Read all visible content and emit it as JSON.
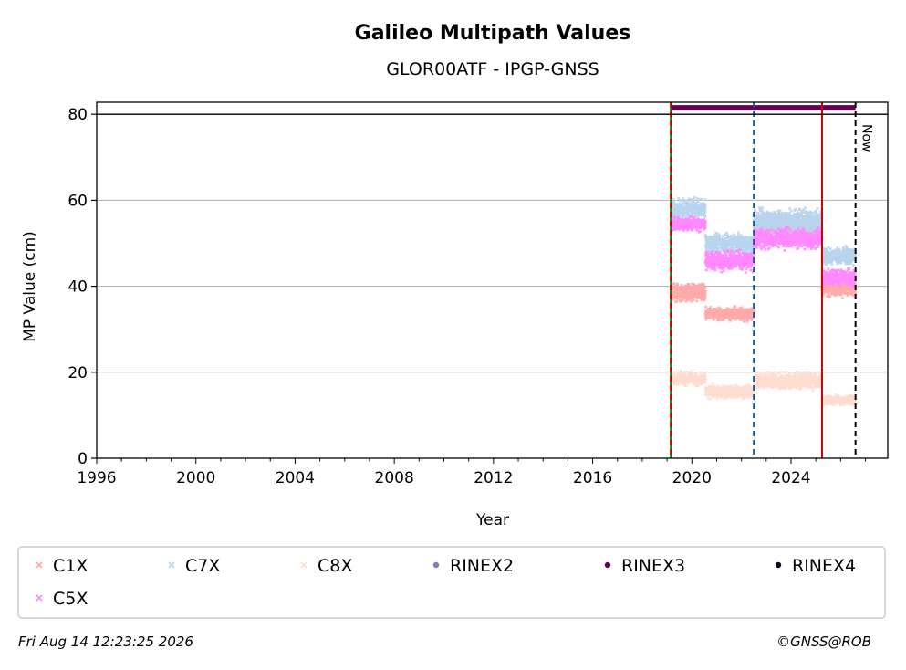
{
  "chart_data": {
    "type": "scatter",
    "title": "Galileo Multipath Values",
    "subtitle": "GLOR00ATF - IPGP-GNSS",
    "xlabel": "Year",
    "ylabel": "MP Value (cm)",
    "xlim": [
      1996,
      2027.9
    ],
    "ylim": [
      0,
      82.8
    ],
    "xticks": [
      1996,
      2000,
      2004,
      2008,
      2012,
      2016,
      2020,
      2024
    ],
    "yticks": [
      0,
      20,
      40,
      60,
      80
    ],
    "grid": "horizontal",
    "rinex_band_y": 81.5,
    "series": [
      {
        "name": "C1X",
        "color": "#ffaaaa",
        "marker": "x",
        "segments": [
          {
            "x0": 2019.15,
            "x1": 2020.55,
            "mean": 38.5,
            "spread": 2.5
          },
          {
            "x0": 2020.55,
            "x1": 2022.5,
            "mean": 33.5,
            "spread": 2.0
          },
          {
            "x0": 2022.5,
            "x1": 2025.25,
            "mean": 54.0,
            "spread": 3.5
          },
          {
            "x0": 2025.25,
            "x1": 2026.6,
            "mean": 39.5,
            "spread": 2.5
          }
        ]
      },
      {
        "name": "C7X",
        "color": "#b8d4ee",
        "marker": "x",
        "segments": [
          {
            "x0": 2019.15,
            "x1": 2020.55,
            "mean": 58.0,
            "spread": 3.0
          },
          {
            "x0": 2020.55,
            "x1": 2022.5,
            "mean": 50.0,
            "spread": 3.0
          },
          {
            "x0": 2022.5,
            "x1": 2025.25,
            "mean": 55.0,
            "spread": 4.0
          },
          {
            "x0": 2025.25,
            "x1": 2026.6,
            "mean": 47.0,
            "spread": 2.5
          }
        ]
      },
      {
        "name": "C8X",
        "color": "#ffdcd0",
        "marker": "x",
        "segments": [
          {
            "x0": 2019.15,
            "x1": 2020.55,
            "mean": 18.5,
            "spread": 2.0
          },
          {
            "x0": 2020.55,
            "x1": 2022.5,
            "mean": 15.5,
            "spread": 2.0
          },
          {
            "x0": 2022.5,
            "x1": 2025.25,
            "mean": 18.0,
            "spread": 2.5
          },
          {
            "x0": 2025.25,
            "x1": 2026.6,
            "mean": 13.5,
            "spread": 1.5
          }
        ]
      },
      {
        "name": "C5X",
        "color": "#ff88ff",
        "marker": "x",
        "segments": [
          {
            "x0": 2019.15,
            "x1": 2020.55,
            "mean": 54.5,
            "spread": 2.0
          },
          {
            "x0": 2020.55,
            "x1": 2022.5,
            "mean": 46.0,
            "spread": 3.0
          },
          {
            "x0": 2022.5,
            "x1": 2025.25,
            "mean": 51.0,
            "spread": 3.0
          },
          {
            "x0": 2025.25,
            "x1": 2026.6,
            "mean": 42.0,
            "spread": 2.5
          }
        ]
      },
      {
        "name": "RINEX2",
        "color": "#8877bb",
        "marker": "dot",
        "segments": []
      },
      {
        "name": "RINEX3",
        "color": "#660055",
        "marker": "dot",
        "segments": [
          {
            "x0": 2019.15,
            "x1": 2026.6,
            "value": 81.5
          }
        ]
      },
      {
        "name": "RINEX4",
        "color": "#110022",
        "marker": "dot",
        "segments": []
      }
    ],
    "vlines": [
      {
        "x": 2019.15,
        "color": "#008800",
        "style": "solid"
      },
      {
        "x": 2019.15,
        "color": "#cc0000",
        "style": "dashed"
      },
      {
        "x": 2022.5,
        "color": "#0055aa",
        "style": "dashed"
      },
      {
        "x": 2025.25,
        "color": "#cc0000",
        "style": "solid"
      },
      {
        "x": 2026.6,
        "color": "#000000",
        "style": "dashed"
      }
    ],
    "annotations": [
      {
        "text": "Now",
        "x": 2026.6
      }
    ],
    "legend": {
      "placement": "bottom",
      "columns": 6,
      "order": [
        "C1X",
        "C7X",
        "C8X",
        "RINEX2",
        "RINEX3",
        "RINEX4",
        "C5X"
      ]
    }
  },
  "footer": {
    "timestamp": "Fri Aug 14 12:23:25 2026",
    "copyright": "©GNSS@ROB"
  }
}
